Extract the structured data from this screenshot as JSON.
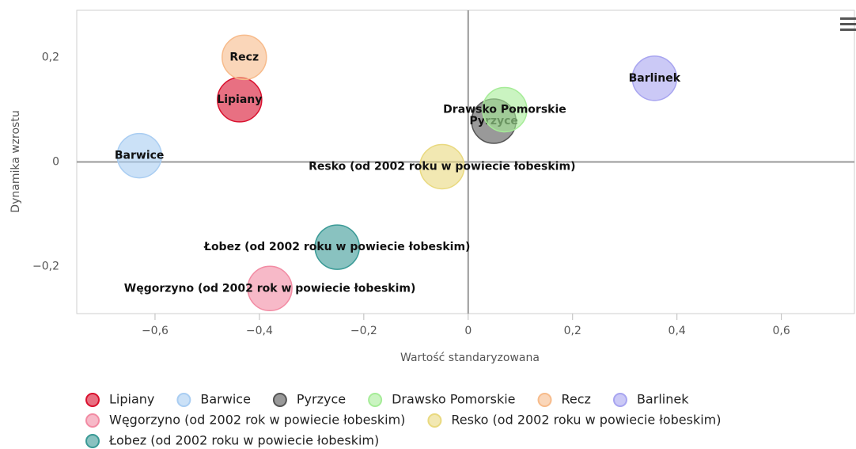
{
  "chart_data": {
    "type": "bubble",
    "xlabel": "Wartość standaryzowana",
    "ylabel": "Dynamika wzrostu",
    "xlim": [
      -0.75,
      0.74
    ],
    "ylim": [
      -0.29,
      0.29
    ],
    "xticks": [
      {
        "value": -0.6,
        "label": "−0,6"
      },
      {
        "value": -0.4,
        "label": "−0,4"
      },
      {
        "value": -0.2,
        "label": "−0,2"
      },
      0,
      {
        "value": 0.2,
        "label": "0,2"
      },
      {
        "value": 0.4,
        "label": "0,4"
      },
      {
        "value": 0.6,
        "label": "0,6"
      }
    ],
    "yticks": [
      {
        "value": -0.2,
        "label": "−0,2"
      },
      0,
      {
        "value": 0.2,
        "label": "0,2"
      }
    ],
    "grid": false,
    "legend": "bottom",
    "series": [
      {
        "name": "Lipiany",
        "color": "#d9112e",
        "x": [
          -0.438
        ],
        "values": [
          0.119
        ]
      },
      {
        "name": "Barwice",
        "color": "#a9cdf2",
        "x": [
          -0.63
        ],
        "values": [
          0.012
        ]
      },
      {
        "name": "Pyrzyce",
        "color": "#555555",
        "x": [
          0.049
        ],
        "values": [
          0.078
        ]
      },
      {
        "name": "Drawsko Pomorskie",
        "color": "#a6ec98",
        "x": [
          0.07
        ],
        "values": [
          0.1
        ]
      },
      {
        "name": "Recz",
        "color": "#f7bb8b",
        "x": [
          -0.429
        ],
        "values": [
          0.2
        ]
      },
      {
        "name": "Barlinek",
        "color": "#a8a5f0",
        "x": [
          0.357
        ],
        "values": [
          0.16
        ]
      },
      {
        "name": "Węgorzyno (od 2002 rok w powiecie łobeskim)",
        "color": "#f28ba3",
        "x": [
          -0.38
        ],
        "values": [
          -0.242
        ]
      },
      {
        "name": "Resko (od 2002 roku w powiecie łobeskim)",
        "color": "#e9d97f",
        "x": [
          -0.05
        ],
        "values": [
          -0.009
        ]
      },
      {
        "name": "Łobez (od 2002 roku w powiecie łobeskim)",
        "color": "#3a9a96",
        "x": [
          -0.251
        ],
        "values": [
          -0.163
        ]
      }
    ]
  }
}
